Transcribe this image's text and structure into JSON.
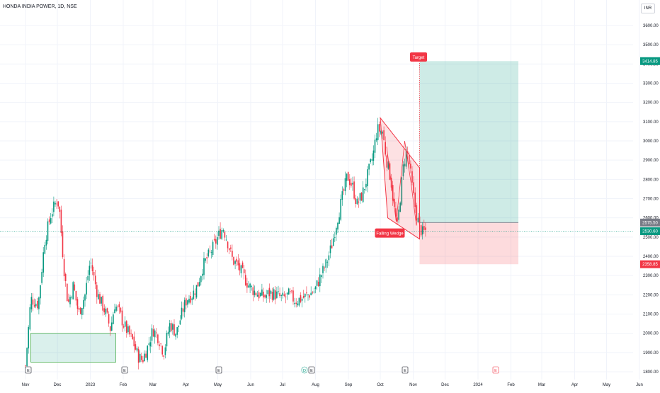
{
  "header": {
    "title": "HONDA INDIA POWER, 1D, NSE",
    "currency": "INR"
  },
  "colors": {
    "up": "#089981",
    "down": "#f23645",
    "grid": "#f0f3fa",
    "axis_text": "#131722"
  },
  "chart_data": {
    "type": "candlestick",
    "title": "HONDA INDIA POWER, 1D, NSE",
    "ylim": [
      1780,
      3650
    ],
    "y_ticks": [
      1800,
      1900,
      2000,
      2100,
      2200,
      2300,
      2400,
      2500,
      2600,
      2700,
      2800,
      2900,
      3000,
      3100,
      3200,
      3300,
      3400,
      3500,
      3600
    ],
    "y_tick_labels": [
      "1800.00",
      "1900.00",
      "2000.00",
      "2100.00",
      "2200.00",
      "2300.00",
      "2400.00",
      "2500.00",
      "2600.00",
      "2700.00",
      "2800.00",
      "2900.00",
      "3000.00",
      "3100.00",
      "3200.00",
      "3300.00",
      "3400.00",
      "3500.00",
      "3600.00"
    ],
    "x_labels": [
      {
        "label": "Nov",
        "t": 0
      },
      {
        "label": "Dec",
        "t": 30
      },
      {
        "label": "2023",
        "t": 61
      },
      {
        "label": "Feb",
        "t": 92
      },
      {
        "label": "Mar",
        "t": 120
      },
      {
        "label": "Apr",
        "t": 151
      },
      {
        "label": "May",
        "t": 181
      },
      {
        "label": "Jun",
        "t": 212
      },
      {
        "label": "Jul",
        "t": 242
      },
      {
        "label": "Aug",
        "t": 273
      },
      {
        "label": "Sep",
        "t": 304
      },
      {
        "label": "Oct",
        "t": 334
      },
      {
        "label": "Nov",
        "t": 365
      },
      {
        "label": "Dec",
        "t": 395
      },
      {
        "label": "2024",
        "t": 426
      },
      {
        "label": "Feb",
        "t": 457
      },
      {
        "label": "Mar",
        "t": 486
      },
      {
        "label": "Apr",
        "t": 517
      },
      {
        "label": "May",
        "t": 547
      },
      {
        "label": "Jun",
        "t": 578
      }
    ],
    "price_path": [
      [
        0,
        1830
      ],
      [
        5,
        2180
      ],
      [
        12,
        2150
      ],
      [
        18,
        2480
      ],
      [
        24,
        2620
      ],
      [
        30,
        2700
      ],
      [
        32,
        2640
      ],
      [
        36,
        2350
      ],
      [
        40,
        2150
      ],
      [
        45,
        2250
      ],
      [
        50,
        2100
      ],
      [
        56,
        2200
      ],
      [
        61,
        2380
      ],
      [
        64,
        2300
      ],
      [
        68,
        2200
      ],
      [
        72,
        2150
      ],
      [
        76,
        2100
      ],
      [
        80,
        2020
      ],
      [
        84,
        2150
      ],
      [
        89,
        2100
      ],
      [
        92,
        2050
      ],
      [
        97,
        2000
      ],
      [
        101,
        1960
      ],
      [
        106,
        1880
      ],
      [
        110,
        1860
      ],
      [
        115,
        1930
      ],
      [
        120,
        2020
      ],
      [
        125,
        1980
      ],
      [
        130,
        1900
      ],
      [
        136,
        2050
      ],
      [
        142,
        2000
      ],
      [
        148,
        2120
      ],
      [
        152,
        2180
      ],
      [
        157,
        2200
      ],
      [
        162,
        2250
      ],
      [
        167,
        2350
      ],
      [
        172,
        2400
      ],
      [
        177,
        2450
      ],
      [
        181,
        2500
      ],
      [
        186,
        2550
      ],
      [
        190,
        2480
      ],
      [
        195,
        2380
      ],
      [
        200,
        2350
      ],
      [
        205,
        2300
      ],
      [
        210,
        2250
      ],
      [
        215,
        2220
      ],
      [
        220,
        2200
      ],
      [
        225,
        2190
      ],
      [
        230,
        2210
      ],
      [
        236,
        2200
      ],
      [
        242,
        2180
      ],
      [
        248,
        2200
      ],
      [
        254,
        2170
      ],
      [
        260,
        2180
      ],
      [
        266,
        2200
      ],
      [
        272,
        2220
      ],
      [
        278,
        2300
      ],
      [
        283,
        2360
      ],
      [
        288,
        2450
      ],
      [
        293,
        2580
      ],
      [
        298,
        2700
      ],
      [
        303,
        2820
      ],
      [
        308,
        2760
      ],
      [
        312,
        2670
      ],
      [
        317,
        2720
      ],
      [
        322,
        2820
      ],
      [
        327,
        2920
      ],
      [
        331,
        3060
      ],
      [
        336,
        3050
      ],
      [
        340,
        2900
      ],
      [
        344,
        2800
      ],
      [
        347,
        2650
      ],
      [
        350,
        2550
      ],
      [
        353,
        2720
      ],
      [
        356,
        2880
      ],
      [
        359,
        2960
      ],
      [
        362,
        2850
      ],
      [
        365,
        2720
      ],
      [
        368,
        2620
      ],
      [
        371,
        2550
      ],
      [
        374,
        2520
      ],
      [
        377,
        2535
      ]
    ],
    "candles": [],
    "annotations": {
      "target_label": "Target",
      "pattern_label": "Falling Wedge",
      "price_labels": [
        {
          "value": 3414.85,
          "text": "3414.85",
          "color": "#089981"
        },
        {
          "value": 2575.5,
          "text": "2575.50",
          "color": "#787b86"
        },
        {
          "value": 2530.6,
          "text": "2530.60",
          "color": "#089981"
        },
        {
          "value": 2358.85,
          "text": "2358.85",
          "color": "#f23645"
        }
      ],
      "target_price": 3414.85,
      "entry_price": 2575.5,
      "stop_price": 2358.85,
      "current_price": 2530.6,
      "earnings_markers": [
        "E",
        "E",
        "E",
        "D",
        "E",
        "E",
        "E"
      ]
    }
  }
}
